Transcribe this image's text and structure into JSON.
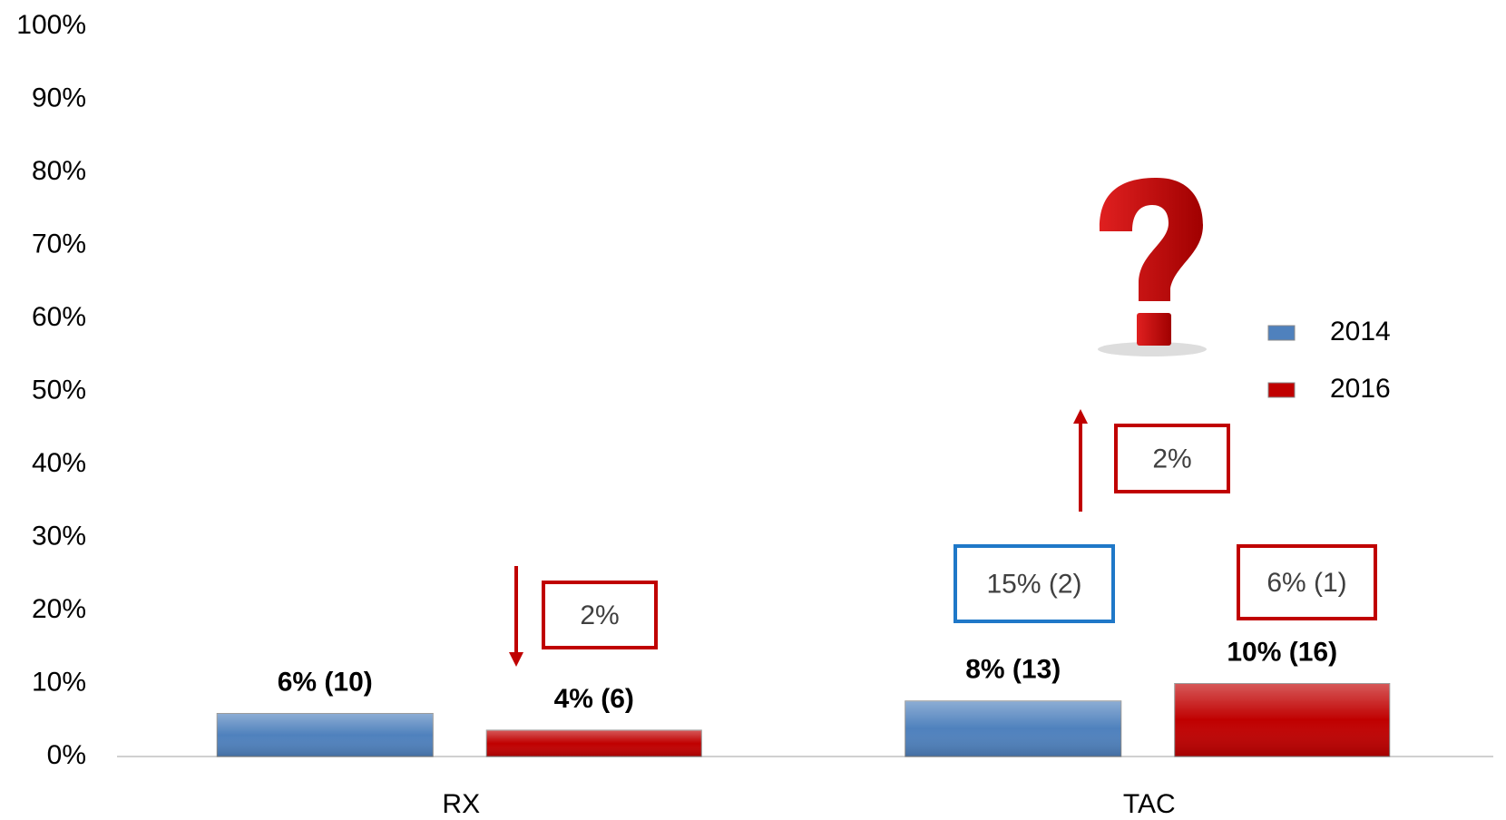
{
  "chart_data": {
    "type": "bar",
    "categories": [
      "RX",
      "TAC"
    ],
    "series": [
      {
        "name": "2014",
        "color": "#4f81bd",
        "values": [
          5.9,
          7.6
        ],
        "value_labels": [
          "6% (10)",
          "8% (13)"
        ]
      },
      {
        "name": "2016",
        "color": "#c00000",
        "values": [
          3.6,
          10.0
        ],
        "value_labels": [
          "4% (6)",
          "10% (16)"
        ]
      }
    ],
    "ylim": [
      0,
      100
    ],
    "yticks": [
      {
        "value": 0,
        "label": "0%"
      },
      {
        "value": 10,
        "label": "10%"
      },
      {
        "value": 20,
        "label": "20%"
      },
      {
        "value": 30,
        "label": "30%"
      },
      {
        "value": 40,
        "label": "40%"
      },
      {
        "value": 50,
        "label": "50%"
      },
      {
        "value": 60,
        "label": "60%"
      },
      {
        "value": 70,
        "label": "70%"
      },
      {
        "value": 80,
        "label": "80%"
      },
      {
        "value": 90,
        "label": "90%"
      },
      {
        "value": 100,
        "label": "100%"
      }
    ],
    "grid": false,
    "legend": "right",
    "annotations": [
      {
        "text": "2%",
        "color": "#c00000",
        "arrow": "down"
      },
      {
        "text": "2%",
        "color": "#c00000",
        "arrow": "up"
      },
      {
        "text": "15% (2)",
        "color": "#1f78c8"
      },
      {
        "text": "6% (1)",
        "color": "#c00000"
      }
    ]
  }
}
